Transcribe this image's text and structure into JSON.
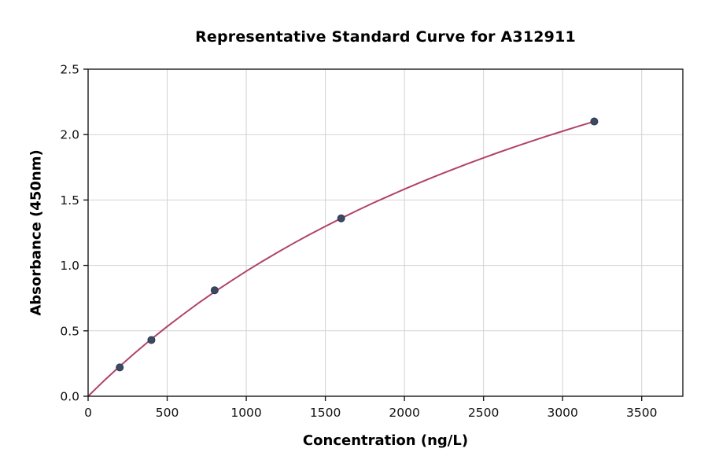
{
  "chart_data": {
    "type": "scatter",
    "title": "Representative Standard Curve for A312911",
    "xlabel": "Concentration (ng/L)",
    "ylabel": "Absorbance (450nm)",
    "xlim": [
      0,
      3760
    ],
    "ylim": [
      0,
      2.5
    ],
    "grid": true,
    "legend": "none",
    "xticks": [
      {
        "v": 0,
        "label": "0"
      },
      {
        "v": 500,
        "label": "500"
      },
      {
        "v": 1000,
        "label": "1000"
      },
      {
        "v": 1500,
        "label": "1500"
      },
      {
        "v": 2000,
        "label": "2000"
      },
      {
        "v": 2500,
        "label": "2500"
      },
      {
        "v": 3000,
        "label": "3000"
      },
      {
        "v": 3500,
        "label": "3500"
      }
    ],
    "yticks": [
      {
        "v": 0.0,
        "label": "0.0"
      },
      {
        "v": 0.5,
        "label": "0.5"
      },
      {
        "v": 1.0,
        "label": "1.0"
      },
      {
        "v": 1.5,
        "label": "1.5"
      },
      {
        "v": 2.0,
        "label": "2.0"
      },
      {
        "v": 2.5,
        "label": "2.5"
      }
    ],
    "points": [
      {
        "x": 200,
        "y": 0.22
      },
      {
        "x": 400,
        "y": 0.43
      },
      {
        "x": 800,
        "y": 0.81
      },
      {
        "x": 1600,
        "y": 1.36
      },
      {
        "x": 3200,
        "y": 2.1
      }
    ],
    "curve": [
      [
        0,
        0.0
      ],
      [
        100,
        0.118
      ],
      [
        200,
        0.229
      ],
      [
        300,
        0.335
      ],
      [
        400,
        0.437
      ],
      [
        500,
        0.533
      ],
      [
        600,
        0.625
      ],
      [
        700,
        0.714
      ],
      [
        800,
        0.798
      ],
      [
        900,
        0.878
      ],
      [
        1000,
        0.956
      ],
      [
        1100,
        1.03
      ],
      [
        1200,
        1.101
      ],
      [
        1300,
        1.17
      ],
      [
        1400,
        1.236
      ],
      [
        1500,
        1.299
      ],
      [
        1600,
        1.36
      ],
      [
        1700,
        1.419
      ],
      [
        1800,
        1.476
      ],
      [
        1900,
        1.53
      ],
      [
        2000,
        1.583
      ],
      [
        2100,
        1.634
      ],
      [
        2200,
        1.684
      ],
      [
        2300,
        1.731
      ],
      [
        2400,
        1.778
      ],
      [
        2500,
        1.822
      ],
      [
        2600,
        1.866
      ],
      [
        2700,
        1.908
      ],
      [
        2800,
        1.948
      ],
      [
        2900,
        1.988
      ],
      [
        3000,
        2.026
      ],
      [
        3100,
        2.064
      ],
      [
        3200,
        2.1
      ]
    ],
    "colors": {
      "curve": "#b0436a",
      "point_fill": "#3b4a63",
      "point_edge": "#2c3850",
      "grid": "#d2d2d2",
      "axis": "#1a1a1a",
      "tick_text": "#111111",
      "background": "#ffffff"
    }
  }
}
